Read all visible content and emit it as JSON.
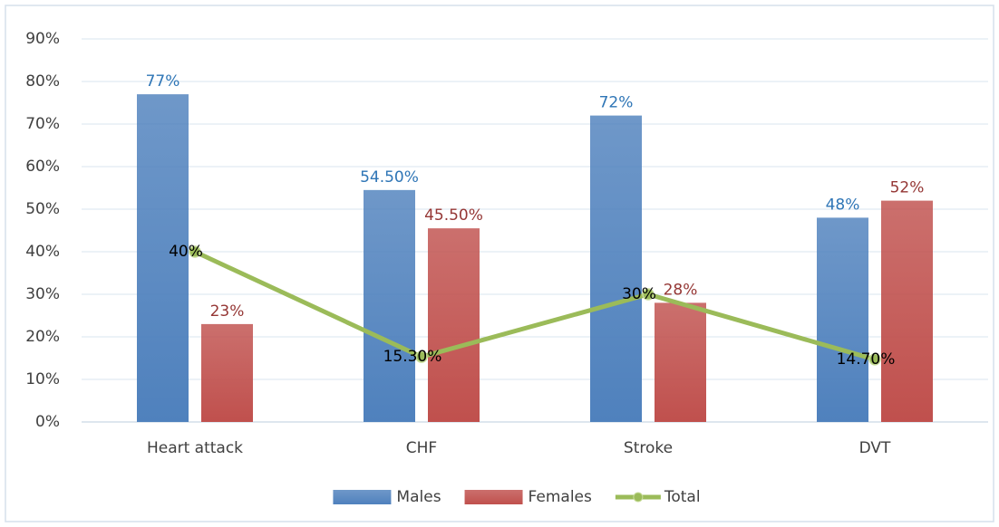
{
  "chart_data": {
    "type": "bar",
    "categories": [
      "Heart attack",
      "CHF",
      "Stroke",
      "DVT"
    ],
    "series": [
      {
        "name": "Males",
        "color": "#4f81bd",
        "label_color": "#2e75b6",
        "values": [
          77,
          54.5,
          72,
          48
        ],
        "value_labels": [
          "77%",
          "54.50%",
          "72%",
          "48%"
        ]
      },
      {
        "name": "Females",
        "color": "#c0504d",
        "label_color": "#953735",
        "values": [
          23,
          45.5,
          28,
          52
        ],
        "value_labels": [
          "23%",
          "45.50%",
          "28%",
          "52%"
        ]
      },
      {
        "name": "Total",
        "type": "line",
        "color": "#9bbb59",
        "label_color": "#000000",
        "values": [
          40,
          15.3,
          30,
          14.7
        ],
        "value_labels": [
          "40%",
          "15.30%",
          "30%",
          "14.70%"
        ]
      }
    ],
    "ylim": [
      0,
      90
    ],
    "yticks": [
      {
        "value": 0,
        "label": "0%"
      },
      {
        "value": 10,
        "label": "10%"
      },
      {
        "value": 20,
        "label": "20%"
      },
      {
        "value": 30,
        "label": "30%"
      },
      {
        "value": 40,
        "label": "40%"
      },
      {
        "value": 50,
        "label": "50%"
      },
      {
        "value": 60,
        "label": "60%"
      },
      {
        "value": 70,
        "label": "70%"
      },
      {
        "value": 80,
        "label": "80%"
      },
      {
        "value": 90,
        "label": "90%"
      }
    ],
    "grid": true,
    "legend": "bottom"
  }
}
